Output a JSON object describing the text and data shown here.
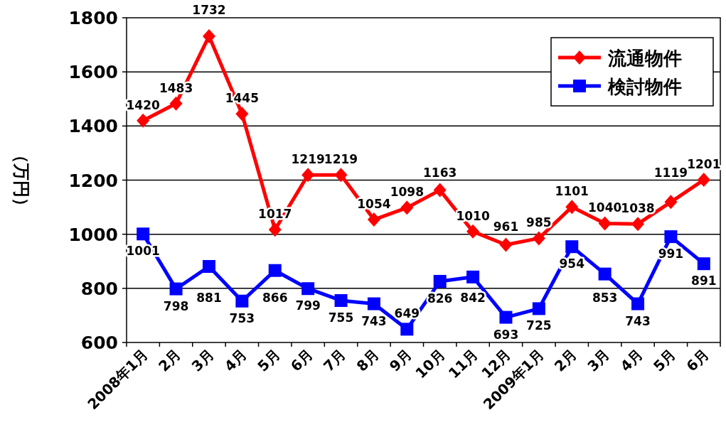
{
  "chart_data": {
    "type": "line",
    "ylabel": "（万円）",
    "categories": [
      "2008年1月",
      "2月",
      "3月",
      "4月",
      "5月",
      "6月",
      "7月",
      "8月",
      "9月",
      "10月",
      "11月",
      "12月",
      "2009年1月",
      "2月",
      "3月",
      "4月",
      "5月",
      "6月"
    ],
    "series": [
      {
        "name": "流通物件",
        "color": "#ff0000",
        "marker": "diamond",
        "values": [
          1420,
          1483,
          1732,
          1445,
          1017,
          1219,
          1219,
          1054,
          1098,
          1163,
          1010,
          961,
          985,
          1101,
          1040,
          1038,
          1119,
          1201
        ]
      },
      {
        "name": "検討物件",
        "color": "#0000ff",
        "marker": "square",
        "values": [
          1001,
          798,
          881,
          753,
          866,
          799,
          755,
          743,
          649,
          826,
          842,
          693,
          725,
          954,
          853,
          743,
          991,
          891
        ]
      }
    ],
    "ylim": [
      600,
      1800
    ],
    "yticks": [
      600,
      800,
      1000,
      1200,
      1400,
      1600,
      1800
    ],
    "grid": "y",
    "legend": "top right",
    "data_labels": true,
    "line_style": "solid"
  }
}
